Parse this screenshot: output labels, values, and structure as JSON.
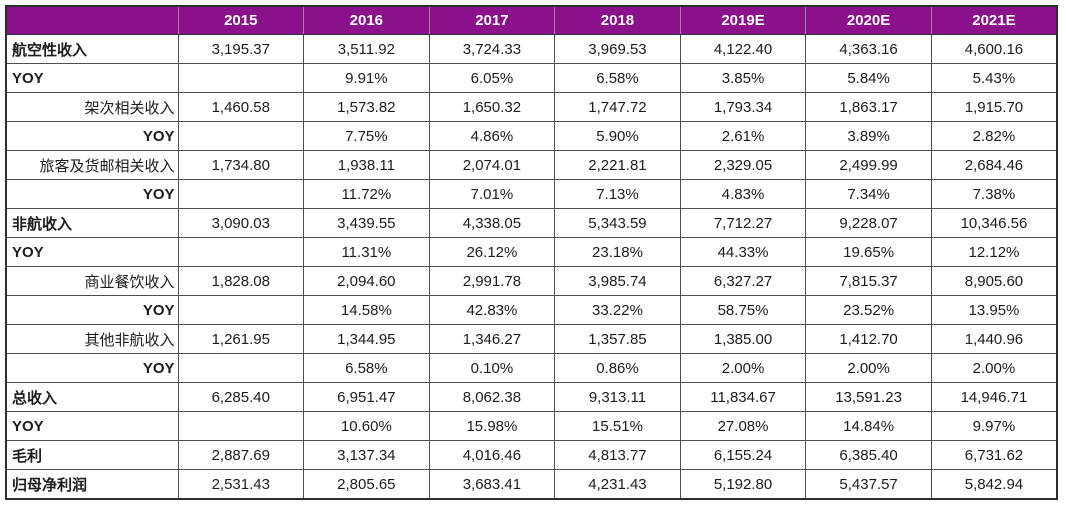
{
  "colors": {
    "header_bg": "#8B108B",
    "header_text": "#FFFFFF",
    "border_inner": "#4F4F4F",
    "border_outer": "#2E2E2E"
  },
  "chart_data": {
    "type": "table",
    "title": "",
    "corner_label": "",
    "columns": [
      "2015",
      "2016",
      "2017",
      "2018",
      "2019E",
      "2020E",
      "2021E"
    ],
    "rows": [
      {
        "label": "航空性收入",
        "emphasis": "bold",
        "indent": false,
        "values": [
          "3,195.37",
          "3,511.92",
          "3,724.33",
          "3,969.53",
          "4,122.40",
          "4,363.16",
          "4,600.16"
        ]
      },
      {
        "label": "YOY",
        "emphasis": "bold",
        "indent": false,
        "values": [
          "",
          "9.91%",
          "6.05%",
          "6.58%",
          "3.85%",
          "5.84%",
          "5.43%"
        ]
      },
      {
        "label": "架次相关收入",
        "emphasis": "normal",
        "indent": true,
        "values": [
          "1,460.58",
          "1,573.82",
          "1,650.32",
          "1,747.72",
          "1,793.34",
          "1,863.17",
          "1,915.70"
        ]
      },
      {
        "label": "YOY",
        "emphasis": "bold",
        "indent": true,
        "values": [
          "",
          "7.75%",
          "4.86%",
          "5.90%",
          "2.61%",
          "3.89%",
          "2.82%"
        ]
      },
      {
        "label": "旅客及货邮相关收入",
        "emphasis": "normal",
        "indent": true,
        "values": [
          "1,734.80",
          "1,938.11",
          "2,074.01",
          "2,221.81",
          "2,329.05",
          "2,499.99",
          "2,684.46"
        ]
      },
      {
        "label": "YOY",
        "emphasis": "bold",
        "indent": true,
        "values": [
          "",
          "11.72%",
          "7.01%",
          "7.13%",
          "4.83%",
          "7.34%",
          "7.38%"
        ]
      },
      {
        "label": "非航收入",
        "emphasis": "bold",
        "indent": false,
        "values": [
          "3,090.03",
          "3,439.55",
          "4,338.05",
          "5,343.59",
          "7,712.27",
          "9,228.07",
          "10,346.56"
        ]
      },
      {
        "label": "YOY",
        "emphasis": "bold",
        "indent": false,
        "values": [
          "",
          "11.31%",
          "26.12%",
          "23.18%",
          "44.33%",
          "19.65%",
          "12.12%"
        ]
      },
      {
        "label": "商业餐饮收入",
        "emphasis": "normal",
        "indent": true,
        "values": [
          "1,828.08",
          "2,094.60",
          "2,991.78",
          "3,985.74",
          "6,327.27",
          "7,815.37",
          "8,905.60"
        ]
      },
      {
        "label": "YOY",
        "emphasis": "bold",
        "indent": true,
        "values": [
          "",
          "14.58%",
          "42.83%",
          "33.22%",
          "58.75%",
          "23.52%",
          "13.95%"
        ]
      },
      {
        "label": "其他非航收入",
        "emphasis": "normal",
        "indent": true,
        "values": [
          "1,261.95",
          "1,344.95",
          "1,346.27",
          "1,357.85",
          "1,385.00",
          "1,412.70",
          "1,440.96"
        ]
      },
      {
        "label": "YOY",
        "emphasis": "bold",
        "indent": true,
        "values": [
          "",
          "6.58%",
          "0.10%",
          "0.86%",
          "2.00%",
          "2.00%",
          "2.00%"
        ]
      },
      {
        "label": "总收入",
        "emphasis": "bold",
        "indent": false,
        "values": [
          "6,285.40",
          "6,951.47",
          "8,062.38",
          "9,313.11",
          "11,834.67",
          "13,591.23",
          "14,946.71"
        ]
      },
      {
        "label": "YOY",
        "emphasis": "bold",
        "indent": false,
        "values": [
          "",
          "10.60%",
          "15.98%",
          "15.51%",
          "27.08%",
          "14.84%",
          "9.97%"
        ]
      },
      {
        "label": "毛利",
        "emphasis": "bold",
        "indent": false,
        "values": [
          "2,887.69",
          "3,137.34",
          "4,016.46",
          "4,813.77",
          "6,155.24",
          "6,385.40",
          "6,731.62"
        ]
      },
      {
        "label": "归母净利润",
        "emphasis": "bold",
        "indent": false,
        "values": [
          "2,531.43",
          "2,805.65",
          "3,683.41",
          "4,231.43",
          "5,192.80",
          "5,437.57",
          "5,842.94"
        ]
      }
    ]
  }
}
